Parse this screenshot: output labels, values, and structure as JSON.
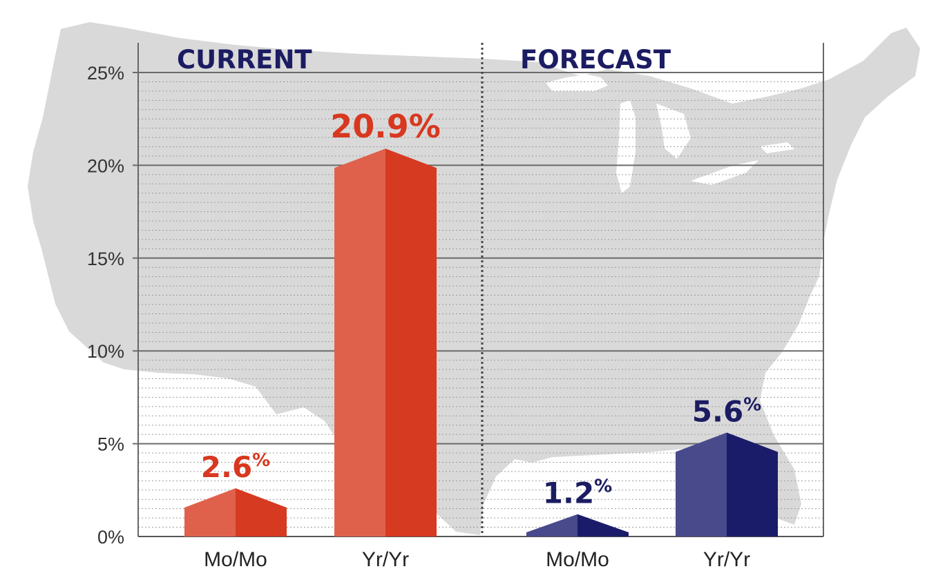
{
  "colors": {
    "current_light": "#E0614B",
    "current_dark": "#D63A20",
    "forecast_light": "#484A8C",
    "forecast_dark": "#1A1C6A",
    "current_text": "#D8381F",
    "forecast_text": "#1B1C62",
    "map": "#D9D9D9",
    "grid_major": "#6A6A6A",
    "grid_minor": "#9A9A9A"
  },
  "chart_data": {
    "type": "bar",
    "title": "",
    "xlabel": "",
    "ylabel": "",
    "ylim": [
      0,
      25
    ],
    "yticks": [
      "0%",
      "5%",
      "10%",
      "15%",
      "20%",
      "25%"
    ],
    "grid": true,
    "background": "us-map-silhouette",
    "sections": [
      {
        "label": "CURRENT",
        "color": "current",
        "bars": [
          {
            "category": "Mo/Mo",
            "value": 2.6,
            "label_main": "2.6",
            "label_unit": "%"
          },
          {
            "category": "Yr/Yr",
            "value": 20.9,
            "label_main": "20.9%",
            "label_unit": ""
          }
        ]
      },
      {
        "label": "FORECAST",
        "color": "forecast",
        "bars": [
          {
            "category": "Mo/Mo",
            "value": 1.2,
            "label_main": "1.2",
            "label_unit": "%"
          },
          {
            "category": "Yr/Yr",
            "value": 5.6,
            "label_main": "5.6",
            "label_unit": "%"
          }
        ]
      }
    ]
  }
}
